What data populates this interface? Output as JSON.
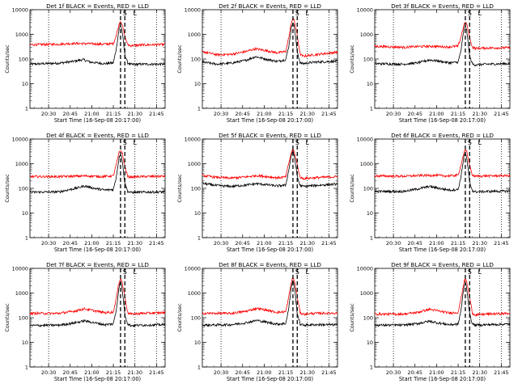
{
  "figure": {
    "x_tick_labels": [
      "20:30",
      "20:45",
      "21:00",
      "21:15",
      "21:30",
      "21:45"
    ],
    "y_tick_labels": [
      "1",
      "10",
      "100",
      "1000",
      "10000"
    ],
    "ylabel": "Counts/sec",
    "xlabel": "Start Time (16-Sep-08 20:17:00)",
    "marker_letters": [
      "S",
      "L"
    ],
    "colors": {
      "events": "#000000",
      "lld": "#ff0000",
      "background": "#ffffff"
    }
  },
  "chart_data": [
    {
      "type": "line",
      "title": "Det 1f BLACK = Events, RED = LLD",
      "xlabel": "Start Time (16-Sep-08 20:17:00)",
      "ylabel": "Counts/sec",
      "xlim_minutes": [
        0,
        94
      ],
      "ylim": [
        1,
        10000
      ],
      "yscale": "log",
      "x_ticks_minutes": [
        13,
        28,
        43,
        58,
        73,
        88
      ],
      "dotted_lines_minutes": [
        13,
        73,
        88
      ],
      "dashed_lines_minutes": [
        63,
        66
      ],
      "markers": [
        {
          "label": "S",
          "x_minutes": 66
        },
        {
          "label": "L",
          "x_minutes": 73
        }
      ],
      "series": [
        {
          "name": "Events",
          "color": "#000000",
          "x_minutes": [
            0,
            20,
            30,
            37,
            42,
            52,
            58,
            60,
            62,
            63,
            64,
            66,
            68,
            70,
            78,
            94
          ],
          "values": [
            62,
            68,
            80,
            95,
            75,
            65,
            70,
            250,
            1700,
            2400,
            1500,
            150,
            70,
            60,
            62,
            62
          ]
        },
        {
          "name": "LLD",
          "color": "#ff0000",
          "x_minutes": [
            0,
            20,
            30,
            40,
            50,
            58,
            60,
            62,
            63,
            64,
            66,
            68,
            70,
            78,
            94
          ],
          "values": [
            380,
            400,
            430,
            420,
            400,
            420,
            900,
            2600,
            3400,
            2800,
            800,
            380,
            350,
            370,
            390
          ]
        }
      ]
    },
    {
      "type": "line",
      "title": "Det 2f BLACK = Events, RED = LLD",
      "xlabel": "Start Time (16-Sep-08 20:17:00)",
      "ylabel": "Counts/sec",
      "xlim_minutes": [
        0,
        94
      ],
      "ylim": [
        1,
        10000
      ],
      "yscale": "log",
      "x_ticks_minutes": [
        13,
        28,
        43,
        58,
        73,
        88
      ],
      "dotted_lines_minutes": [
        13,
        73,
        88
      ],
      "dashed_lines_minutes": [
        63,
        66
      ],
      "markers": [
        {
          "label": "S",
          "x_minutes": 66
        },
        {
          "label": "L",
          "x_minutes": 73
        }
      ],
      "series": [
        {
          "name": "Events",
          "color": "#000000",
          "x_minutes": [
            0,
            10,
            20,
            30,
            37,
            44,
            52,
            58,
            60,
            62,
            63,
            64,
            66,
            68,
            70,
            78,
            94
          ],
          "values": [
            75,
            62,
            68,
            88,
            125,
            100,
            80,
            95,
            300,
            2000,
            3200,
            2000,
            200,
            70,
            65,
            75,
            82
          ]
        },
        {
          "name": "LLD",
          "color": "#ff0000",
          "x_minutes": [
            0,
            10,
            20,
            30,
            37,
            44,
            52,
            58,
            60,
            62,
            63,
            64,
            66,
            68,
            70,
            78,
            94
          ],
          "values": [
            200,
            150,
            155,
            200,
            260,
            220,
            180,
            200,
            700,
            3200,
            4500,
            3500,
            900,
            160,
            130,
            150,
            190
          ]
        }
      ]
    },
    {
      "type": "line",
      "title": "Det 3f BLACK = Events, RED = LLD",
      "xlabel": "Start Time (16-Sep-08 20:17:00)",
      "ylabel": "Counts/sec",
      "xlim_minutes": [
        0,
        94
      ],
      "ylim": [
        1,
        10000
      ],
      "yscale": "log",
      "x_ticks_minutes": [
        13,
        28,
        43,
        58,
        73,
        88
      ],
      "dotted_lines_minutes": [
        13,
        73,
        88
      ],
      "dashed_lines_minutes": [
        63,
        66
      ],
      "markers": [
        {
          "label": "S",
          "x_minutes": 66
        },
        {
          "label": "L",
          "x_minutes": 73
        }
      ],
      "series": [
        {
          "name": "Events",
          "color": "#000000",
          "x_minutes": [
            0,
            20,
            30,
            38,
            45,
            52,
            58,
            60,
            62,
            63,
            64,
            66,
            68,
            70,
            78,
            94
          ],
          "values": [
            65,
            62,
            70,
            92,
            82,
            70,
            75,
            220,
            1600,
            2300,
            1400,
            130,
            62,
            58,
            62,
            65
          ]
        },
        {
          "name": "LLD",
          "color": "#ff0000",
          "x_minutes": [
            0,
            20,
            30,
            40,
            50,
            58,
            60,
            62,
            63,
            64,
            66,
            68,
            70,
            78,
            94
          ],
          "values": [
            330,
            300,
            320,
            330,
            310,
            330,
            800,
            2400,
            3100,
            2600,
            700,
            300,
            270,
            280,
            290
          ]
        }
      ]
    },
    {
      "type": "line",
      "title": "Det 4f BLACK = Events, RED = LLD",
      "xlabel": "Start Time (16-Sep-08 20:17:00)",
      "ylabel": "Counts/sec",
      "xlim_minutes": [
        0,
        94
      ],
      "ylim": [
        1,
        10000
      ],
      "yscale": "log",
      "x_ticks_minutes": [
        13,
        28,
        43,
        58,
        73,
        88
      ],
      "dotted_lines_minutes": [
        13,
        73,
        88
      ],
      "dashed_lines_minutes": [
        63,
        66
      ],
      "markers": [
        {
          "label": "S",
          "x_minutes": 66
        },
        {
          "label": "L",
          "x_minutes": 73
        }
      ],
      "series": [
        {
          "name": "Events",
          "color": "#000000",
          "x_minutes": [
            0,
            20,
            30,
            38,
            45,
            52,
            58,
            60,
            62,
            63,
            64,
            66,
            68,
            70,
            78,
            94
          ],
          "values": [
            70,
            72,
            95,
            125,
            100,
            85,
            90,
            280,
            1800,
            2600,
            1600,
            160,
            75,
            68,
            70,
            72
          ]
        },
        {
          "name": "LLD",
          "color": "#ff0000",
          "x_minutes": [
            0,
            20,
            30,
            40,
            50,
            58,
            60,
            62,
            63,
            64,
            66,
            68,
            70,
            78,
            94
          ],
          "values": [
            300,
            300,
            310,
            320,
            300,
            320,
            900,
            2800,
            3500,
            2900,
            800,
            300,
            290,
            300,
            310
          ]
        }
      ]
    },
    {
      "type": "line",
      "title": "Det 5f BLACK = Events, RED = LLD",
      "xlabel": "Start Time (16-Sep-08 20:17:00)",
      "ylabel": "Counts/sec",
      "xlim_minutes": [
        0,
        94
      ],
      "ylim": [
        1,
        10000
      ],
      "yscale": "log",
      "x_ticks_minutes": [
        13,
        28,
        43,
        58,
        73,
        88
      ],
      "dotted_lines_minutes": [
        13,
        73,
        88
      ],
      "dashed_lines_minutes": [
        63,
        66
      ],
      "markers": [
        {
          "label": "S",
          "x_minutes": 66
        },
        {
          "label": "L",
          "x_minutes": 73
        }
      ],
      "series": [
        {
          "name": "Events",
          "color": "#000000",
          "x_minutes": [
            0,
            10,
            20,
            30,
            38,
            45,
            52,
            58,
            60,
            62,
            63,
            64,
            66,
            68,
            70,
            78,
            94
          ],
          "values": [
            160,
            130,
            120,
            135,
            155,
            140,
            125,
            135,
            500,
            2500,
            3200,
            2000,
            300,
            130,
            120,
            130,
            150
          ]
        },
        {
          "name": "LLD",
          "color": "#ff0000",
          "x_minutes": [
            0,
            10,
            20,
            30,
            38,
            45,
            52,
            58,
            60,
            62,
            63,
            64,
            66,
            68,
            70,
            78,
            94
          ],
          "values": [
            330,
            280,
            260,
            290,
            330,
            300,
            270,
            290,
            1000,
            3000,
            3800,
            3000,
            900,
            280,
            250,
            270,
            300
          ]
        }
      ]
    },
    {
      "type": "line",
      "title": "Det 6f BLACK = Events, RED = LLD",
      "xlabel": "Start Time (16-Sep-08 20:17:00)",
      "ylabel": "Counts/sec",
      "xlim_minutes": [
        0,
        94
      ],
      "ylim": [
        1,
        10000
      ],
      "yscale": "log",
      "x_ticks_minutes": [
        13,
        28,
        43,
        58,
        73,
        88
      ],
      "dotted_lines_minutes": [
        13,
        73,
        88
      ],
      "dashed_lines_minutes": [
        63,
        66
      ],
      "markers": [
        {
          "label": "S",
          "x_minutes": 66
        },
        {
          "label": "L",
          "x_minutes": 73
        }
      ],
      "series": [
        {
          "name": "Events",
          "color": "#000000",
          "x_minutes": [
            0,
            20,
            30,
            38,
            45,
            52,
            58,
            60,
            62,
            63,
            64,
            66,
            68,
            70,
            78,
            94
          ],
          "values": [
            75,
            75,
            95,
            120,
            100,
            85,
            90,
            300,
            2000,
            2700,
            1700,
            170,
            80,
            72,
            75,
            78
          ]
        },
        {
          "name": "LLD",
          "color": "#ff0000",
          "x_minutes": [
            0,
            20,
            30,
            40,
            50,
            58,
            60,
            62,
            63,
            64,
            66,
            68,
            70,
            78,
            94
          ],
          "values": [
            320,
            310,
            330,
            340,
            320,
            340,
            900,
            2800,
            3500,
            3000,
            850,
            330,
            310,
            320,
            330
          ]
        }
      ]
    },
    {
      "type": "line",
      "title": "Det 7f BLACK = Events, RED = LLD",
      "xlabel": "Start Time (16-Sep-08 20:17:00)",
      "ylabel": "Counts/sec",
      "xlim_minutes": [
        0,
        94
      ],
      "ylim": [
        1,
        10000
      ],
      "yscale": "log",
      "x_ticks_minutes": [
        13,
        28,
        43,
        58,
        73,
        88
      ],
      "dotted_lines_minutes": [
        13,
        73,
        88
      ],
      "dashed_lines_minutes": [
        63,
        66
      ],
      "markers": [
        {
          "label": "S",
          "x_minutes": 66
        },
        {
          "label": "L",
          "x_minutes": 73
        }
      ],
      "series": [
        {
          "name": "Events",
          "color": "#000000",
          "x_minutes": [
            0,
            20,
            30,
            38,
            45,
            52,
            58,
            60,
            62,
            63,
            64,
            66,
            68,
            70,
            78,
            94
          ],
          "values": [
            48,
            50,
            60,
            75,
            62,
            52,
            56,
            200,
            1800,
            3000,
            1700,
            140,
            55,
            48,
            50,
            52
          ]
        },
        {
          "name": "LLD",
          "color": "#ff0000",
          "x_minutes": [
            0,
            20,
            30,
            38,
            45,
            52,
            58,
            60,
            62,
            63,
            64,
            66,
            68,
            70,
            78,
            94
          ],
          "values": [
            150,
            150,
            180,
            230,
            190,
            160,
            170,
            600,
            2800,
            4000,
            3000,
            700,
            160,
            140,
            150,
            160
          ]
        }
      ]
    },
    {
      "type": "line",
      "title": "Det 8f BLACK = Events, RED = LLD",
      "xlabel": "Start Time (16-Sep-08 20:17:00)",
      "ylabel": "Counts/sec",
      "xlim_minutes": [
        0,
        94
      ],
      "ylim": [
        1,
        10000
      ],
      "yscale": "log",
      "x_ticks_minutes": [
        13,
        28,
        43,
        58,
        73,
        88
      ],
      "dotted_lines_minutes": [
        13,
        73,
        88
      ],
      "dashed_lines_minutes": [
        63,
        66
      ],
      "markers": [
        {
          "label": "S",
          "x_minutes": 66
        },
        {
          "label": "L",
          "x_minutes": 73
        }
      ],
      "series": [
        {
          "name": "Events",
          "color": "#000000",
          "x_minutes": [
            0,
            20,
            30,
            38,
            45,
            52,
            58,
            60,
            62,
            63,
            64,
            66,
            68,
            70,
            78,
            94
          ],
          "values": [
            50,
            52,
            62,
            78,
            65,
            55,
            58,
            220,
            2000,
            3300,
            1900,
            150,
            55,
            50,
            52,
            52
          ]
        },
        {
          "name": "LLD",
          "color": "#ff0000",
          "x_minutes": [
            0,
            20,
            30,
            38,
            45,
            52,
            58,
            60,
            62,
            63,
            64,
            66,
            68,
            70,
            78,
            94
          ],
          "values": [
            150,
            150,
            180,
            240,
            200,
            165,
            175,
            650,
            3000,
            4200,
            3200,
            700,
            160,
            140,
            150,
            155
          ]
        }
      ]
    },
    {
      "type": "line",
      "title": "Det 9f BLACK = Events, RED = LLD",
      "xlabel": "Start Time (16-Sep-08 20:17:00)",
      "ylabel": "Counts/sec",
      "xlim_minutes": [
        0,
        94
      ],
      "ylim": [
        1,
        10000
      ],
      "yscale": "log",
      "x_ticks_minutes": [
        13,
        28,
        43,
        58,
        73,
        88
      ],
      "dotted_lines_minutes": [
        13,
        73,
        88
      ],
      "dashed_lines_minutes": [
        63,
        66
      ],
      "markers": [
        {
          "label": "S",
          "x_minutes": 66
        },
        {
          "label": "L",
          "x_minutes": 73
        }
      ],
      "series": [
        {
          "name": "Events",
          "color": "#000000",
          "x_minutes": [
            0,
            20,
            30,
            38,
            45,
            52,
            58,
            60,
            62,
            63,
            64,
            66,
            68,
            70,
            78,
            94
          ],
          "values": [
            50,
            50,
            58,
            72,
            60,
            52,
            55,
            200,
            1700,
            2700,
            1600,
            140,
            55,
            50,
            52,
            55
          ]
        },
        {
          "name": "LLD",
          "color": "#ff0000",
          "x_minutes": [
            0,
            20,
            30,
            38,
            45,
            52,
            58,
            60,
            62,
            63,
            64,
            66,
            68,
            70,
            78,
            94
          ],
          "values": [
            140,
            140,
            165,
            220,
            185,
            155,
            165,
            600,
            2700,
            3800,
            2900,
            650,
            150,
            130,
            140,
            150
          ]
        }
      ]
    }
  ]
}
